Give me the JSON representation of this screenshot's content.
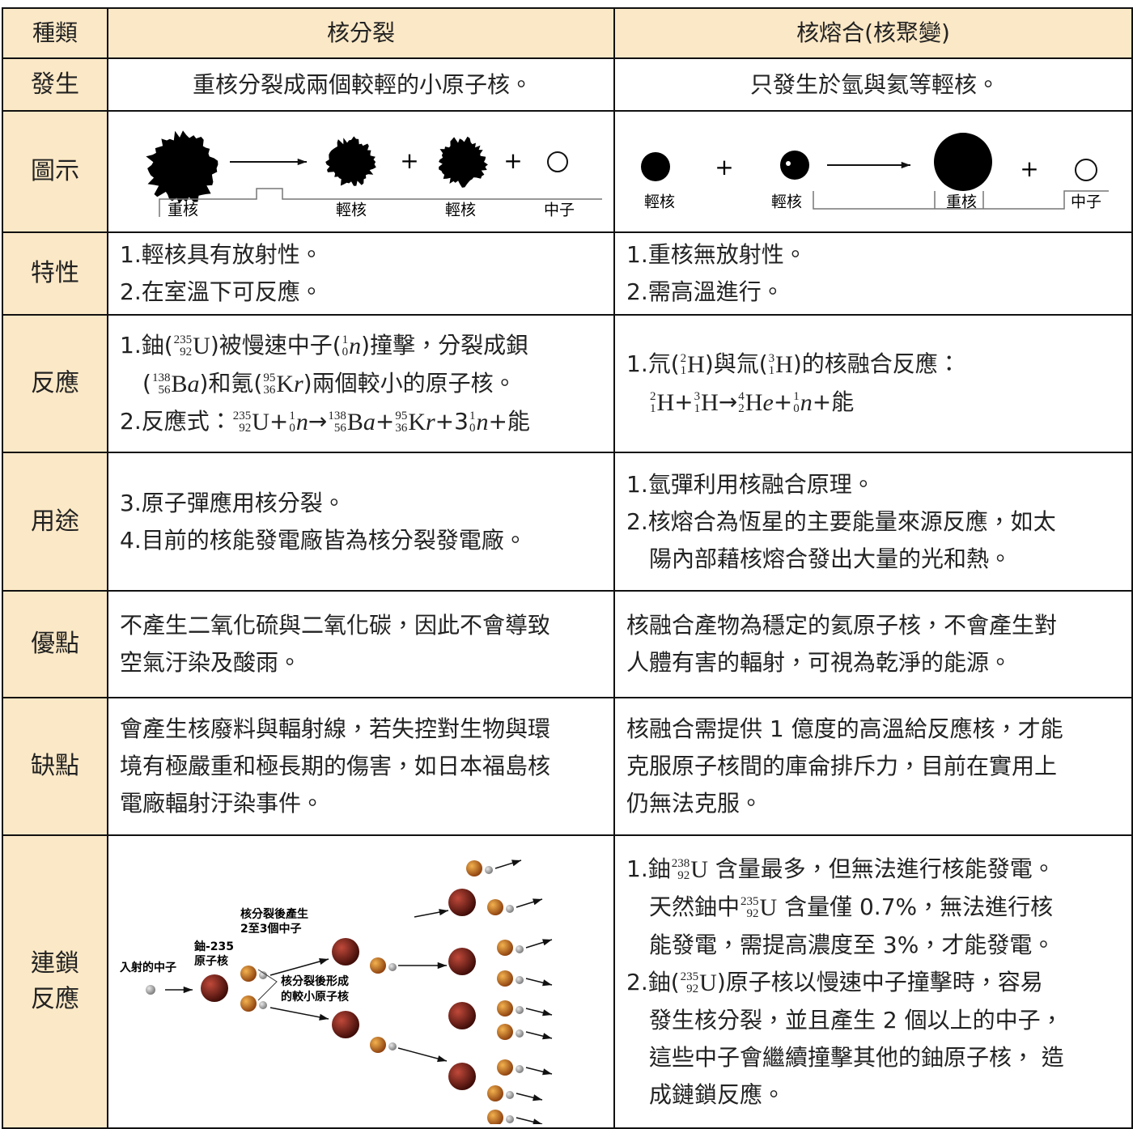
{
  "table": {
    "header": [
      "種類",
      "核分裂",
      "核熔合(核聚變)"
    ],
    "plus": "+",
    "rows": [
      {
        "label": [
          "發生"
        ],
        "left": [
          [
            "重核分裂成兩個較輕的小原子核。"
          ]
        ],
        "right": [
          [
            "只發生於氫與氦等輕核。"
          ]
        ]
      },
      {
        "label": [
          "圖示"
        ],
        "left": {
          "labels": [
            "重核",
            "輕核",
            "輕核",
            "中子"
          ]
        },
        "right": {
          "labels": [
            "輕核",
            "輕核",
            "重核",
            "中子"
          ]
        }
      },
      {
        "label": [
          "特性"
        ],
        "left": [
          [
            "1.輕核具有放射性。"
          ],
          [
            "2.在室溫下可反應。"
          ]
        ],
        "right": [
          [
            "1.重核無放射性。"
          ],
          [
            "2.需高溫進行。"
          ]
        ]
      },
      {
        "label": [
          "反應"
        ],
        "left": [
          [
            "1.鈾(",
            {
              "sup": "235",
              "sub": "92",
              "sym": "U"
            },
            ")被慢速中子(",
            {
              "sup": "1",
              "sub": "0",
              "var": "n"
            },
            ")撞擊，分裂成鋇"
          ],
          [
            "(",
            {
              "sup": "138",
              "sub": "56",
              "sym": "B",
              "var": "a"
            },
            ")和氪(",
            {
              "sup": "95",
              "sub": "36",
              "sym": "K",
              "var": "r"
            },
            ")兩個較小的原子核。"
          ],
          [
            "2.反應式：",
            {
              "sup": "235",
              "sub": "92",
              "sym": "U"
            },
            "+",
            {
              "sup": "1",
              "sub": "0",
              "var": "n"
            },
            "→",
            {
              "sup": "138",
              "sub": "56",
              "sym": "B",
              "var": "a"
            },
            "+",
            {
              "sup": "95",
              "sub": "36",
              "sym": "K",
              "var": "r"
            },
            "+3",
            {
              "sup": "1",
              "sub": "0",
              "var": "n"
            },
            "+能"
          ]
        ],
        "right": [
          [
            "1.氘(",
            {
              "sup": "2",
              "sub": "1",
              "sym": "H"
            },
            ")與氚(",
            {
              "sup": "3",
              "sub": "1",
              "sym": "H"
            },
            ")的核融合反應："
          ],
          [
            {
              "sup": "2",
              "sub": "1",
              "sym": "H"
            },
            "+",
            {
              "sup": "3",
              "sub": "1",
              "sym": "H"
            },
            "→",
            {
              "sup": "4",
              "sub": "2",
              "sym": "H",
              "var": "e"
            },
            "+",
            {
              "sup": "1",
              "sub": "0",
              "var": "n"
            },
            "+能"
          ]
        ]
      },
      {
        "label": [
          "用途"
        ],
        "left": [
          [
            "3.原子彈應用核分裂。"
          ],
          [
            "4.目前的核能發電廠皆為核分裂發電廠。"
          ]
        ],
        "right": [
          [
            "1.氫彈利用核融合原理。"
          ],
          [
            "2.核熔合為恆星的主要能量來源反應，如太"
          ],
          [
            "陽內部藉核熔合發出大量的光和熱。"
          ]
        ]
      },
      {
        "label": [
          "優點"
        ],
        "left": [
          [
            "不產生二氧化硫與二氧化碳，因此不會導致"
          ],
          [
            "空氣汙染及酸雨。"
          ]
        ],
        "right": [
          [
            "核融合產物為穩定的氦原子核，不會產生對"
          ],
          [
            "人體有害的輻射，可視為乾淨的能源。"
          ]
        ]
      },
      {
        "label": [
          "缺點"
        ],
        "left": [
          [
            "會產生核廢料與輻射線，若失控對生物與環"
          ],
          [
            "境有極嚴重和極長期的傷害，如日本福島核"
          ],
          [
            "電廠輻射汙染事件。"
          ]
        ],
        "right": [
          [
            "核融合需提供 1 億度的高溫給反應核，才能"
          ],
          [
            "克服原子核間的庫侖排斥力，目前在實用上"
          ],
          [
            "仍無法克服。"
          ]
        ]
      },
      {
        "label": [
          "連鎖",
          "反應"
        ],
        "left": {
          "labels": [
            "核分裂後產生",
            "2至3個中子",
            "鈾-235",
            "原子核",
            "入射的中子",
            "核分裂後形成",
            "的較小原子核"
          ]
        },
        "right": [
          [
            "1.鈾",
            {
              "sup": "238",
              "sub": "92",
              "sym": "U"
            },
            " 含量最多，但無法進行核能發電。"
          ],
          [
            "天然鈾中",
            {
              "sup": "235",
              "sub": "92",
              "sym": "U"
            },
            " 含量僅 0.7%，無法進行核"
          ],
          [
            "能發電，需提高濃度至 3%，才能發電。"
          ],
          [
            "2.鈾(",
            {
              "sup": "235",
              "sub": "92",
              "sym": "U"
            },
            ")原子核以慢速中子撞擊時，容易"
          ],
          [
            "發生核分裂，並且產生 2 個以上的中子，"
          ],
          [
            "這些中子會繼續撞擊其他的鈾原子核， 造"
          ],
          [
            "成鏈鎖反應。"
          ]
        ]
      }
    ]
  }
}
